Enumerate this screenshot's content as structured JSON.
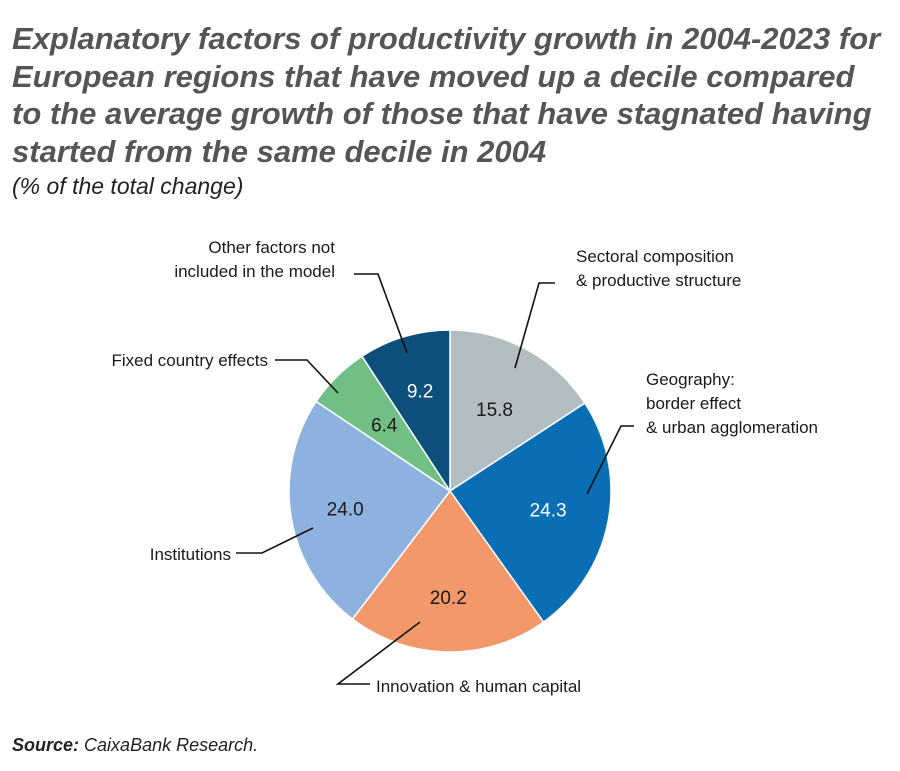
{
  "title": "Explanatory factors of productivity growth in 2004-2023 for European regions that have moved up a decile compared to the average growth of those that have stagnated having started from the same decile in 2004",
  "subtitle": "(% of the total change)",
  "source": {
    "label": "Source:",
    "text": "CaixaBank Research."
  },
  "chart_data": {
    "type": "pie",
    "title": "Explanatory factors of productivity growth in 2004-2023 for European regions that have moved up a decile compared to the average growth of those that have stagnated having started from the same decile in 2004",
    "subtitle": "(% of the total change)",
    "unit": "%",
    "start": "12 o'clock, clockwise",
    "slices": [
      {
        "label": "Sectoral composition\n& productive structure",
        "value": 15.8,
        "value_label": "15.8",
        "color": "#b2bec1",
        "text_color": "#1a1a1a"
      },
      {
        "label": "Geography:\nborder effect\n& urban agglomeration",
        "value": 24.3,
        "value_label": "24.3",
        "color": "#0a6eb4",
        "text_color": "#ffffff"
      },
      {
        "label": "Innovation & human capital",
        "value": 20.2,
        "value_label": "20.2",
        "color": "#f2986b",
        "text_color": "#1a1a1a"
      },
      {
        "label": "Institutions",
        "value": 24.0,
        "value_label": "24.0",
        "color": "#8eb2e0",
        "text_color": "#1a1a1a"
      },
      {
        "label": "Fixed country effects",
        "value": 6.4,
        "value_label": "6.4",
        "color": "#72bf85",
        "text_color": "#1a1a1a"
      },
      {
        "label": "Other factors not\nincluded in the model",
        "value": 9.2,
        "value_label": "9.2",
        "color": "#0b4f7a",
        "text_color": "#ffffff"
      }
    ]
  }
}
